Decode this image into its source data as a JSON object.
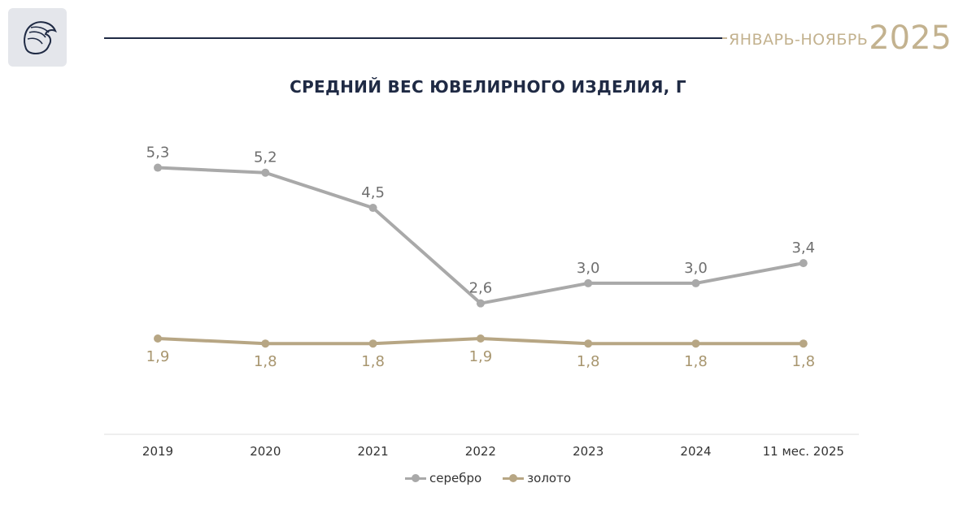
{
  "header": {
    "period": "ЯНВАРЬ-НОЯБРЬ",
    "year": "2025"
  },
  "colors": {
    "silver": "#a9a9a9",
    "gold": "#b7a684",
    "navy": "#1f2a44"
  },
  "chart_data": {
    "type": "line",
    "title": "СРЕДНИЙ ВЕС ЮВЕЛИРНОГО ИЗДЕЛИЯ, Г",
    "xlabel": "",
    "ylabel": "",
    "categories": [
      "2019",
      "2020",
      "2021",
      "2022",
      "2023",
      "2024",
      "11 мес. 2025"
    ],
    "series": [
      {
        "name": "серебро",
        "values": [
          5.3,
          5.2,
          4.5,
          2.6,
          3.0,
          3.0,
          3.4
        ],
        "labels": [
          "5,3",
          "5,2",
          "4,5",
          "2,6",
          "3,0",
          "3,0",
          "3,4"
        ],
        "color": "#a9a9a9"
      },
      {
        "name": "золото",
        "values": [
          1.9,
          1.8,
          1.8,
          1.9,
          1.8,
          1.8,
          1.8
        ],
        "labels": [
          "1,9",
          "1,8",
          "1,8",
          "1,9",
          "1,8",
          "1,8",
          "1,8"
        ],
        "color": "#b7a684"
      }
    ],
    "legend_position": "bottom",
    "grid": false
  }
}
